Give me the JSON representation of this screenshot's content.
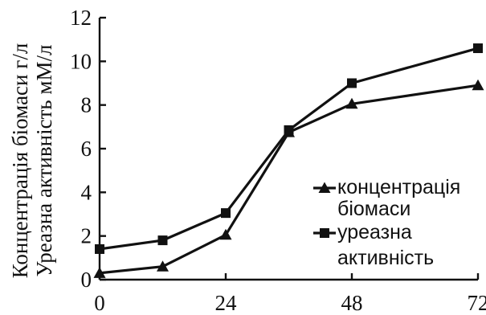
{
  "chart_data": {
    "type": "line",
    "title": "",
    "xlabel": "",
    "ylabel_lines": [
      "Концентрація біомаси г/л",
      "Уреазна активність мМ/л"
    ],
    "xlim": [
      0,
      72
    ],
    "ylim": [
      0,
      12
    ],
    "x_ticks": [
      "0",
      "24",
      "48",
      "72"
    ],
    "y_ticks": [
      "0",
      "2",
      "4",
      "6",
      "8",
      "10",
      "12"
    ],
    "grid": false,
    "legend_position": "lower-right",
    "series": [
      {
        "name_lines": [
          "концентрація",
          "біомаси"
        ],
        "marker": "triangle",
        "x": [
          0,
          12,
          24,
          36,
          48,
          72
        ],
        "y": [
          0.3,
          0.6,
          2.05,
          6.75,
          8.05,
          8.9
        ]
      },
      {
        "name_lines": [
          "уреазна",
          "активність"
        ],
        "marker": "square",
        "x": [
          0,
          12,
          24,
          36,
          48,
          72
        ],
        "y": [
          1.4,
          1.8,
          3.05,
          6.85,
          9.0,
          10.6
        ]
      }
    ]
  }
}
